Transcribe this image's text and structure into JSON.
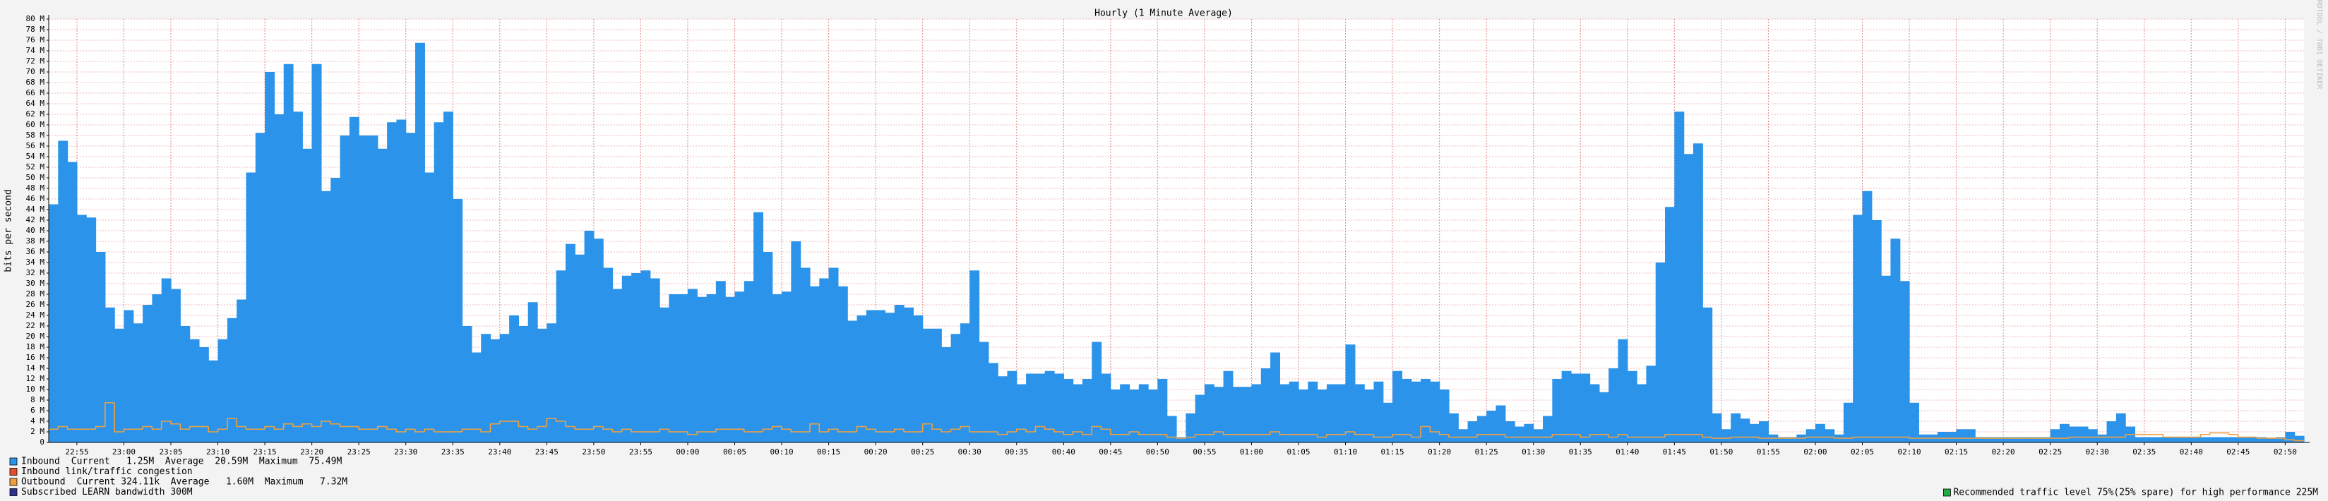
{
  "chart_data": {
    "type": "bar",
    "title": "Hourly (1 Minute Average)",
    "y_label": "bits per second",
    "side_text": "RRDTOOL / TOBI OETIKER",
    "grid": true,
    "ylim": [
      0,
      80
    ],
    "yticks": [
      0,
      {
        "value": 2,
        "label": "2 M"
      },
      {
        "value": 4,
        "label": "4 M"
      },
      {
        "value": 6,
        "label": "6 M"
      },
      {
        "value": 8,
        "label": "8 M"
      },
      {
        "value": 10,
        "label": "10 M"
      },
      {
        "value": 12,
        "label": "12 M"
      },
      {
        "value": 14,
        "label": "14 M"
      },
      {
        "value": 16,
        "label": "16 M"
      },
      {
        "value": 18,
        "label": "18 M"
      },
      {
        "value": 20,
        "label": "20 M"
      },
      {
        "value": 22,
        "label": "22 M"
      },
      {
        "value": 24,
        "label": "24 M"
      },
      {
        "value": 26,
        "label": "26 M"
      },
      {
        "value": 28,
        "label": "28 M"
      },
      {
        "value": 30,
        "label": "30 M"
      },
      {
        "value": 32,
        "label": "32 M"
      },
      {
        "value": 34,
        "label": "34 M"
      },
      {
        "value": 36,
        "label": "36 M"
      },
      {
        "value": 38,
        "label": "38 M"
      },
      {
        "value": 40,
        "label": "40 M"
      },
      {
        "value": 42,
        "label": "42 M"
      },
      {
        "value": 44,
        "label": "44 M"
      },
      {
        "value": 46,
        "label": "46 M"
      },
      {
        "value": 48,
        "label": "48 M"
      },
      {
        "value": 50,
        "label": "50 M"
      },
      {
        "value": 52,
        "label": "52 M"
      },
      {
        "value": 54,
        "label": "54 M"
      },
      {
        "value": 56,
        "label": "56 M"
      },
      {
        "value": 58,
        "label": "58 M"
      },
      {
        "value": 60,
        "label": "60 M"
      },
      {
        "value": 62,
        "label": "62 M"
      },
      {
        "value": 64,
        "label": "64 M"
      },
      {
        "value": 66,
        "label": "66 M"
      },
      {
        "value": 68,
        "label": "68 M"
      },
      {
        "value": 70,
        "label": "70 M"
      },
      {
        "value": 72,
        "label": "72 M"
      },
      {
        "value": 74,
        "label": "74 M"
      },
      {
        "value": 76,
        "label": "76 M"
      },
      {
        "value": 78,
        "label": "78 M"
      },
      {
        "value": 80,
        "label": "80 M"
      }
    ],
    "categories": [
      null,
      null,
      null,
      "22:55",
      null,
      null,
      null,
      null,
      "23:00",
      null,
      null,
      null,
      null,
      "23:05",
      null,
      null,
      null,
      null,
      "23:10",
      null,
      null,
      null,
      null,
      "23:15",
      null,
      null,
      null,
      null,
      "23:20",
      null,
      null,
      null,
      null,
      "23:25",
      null,
      null,
      null,
      null,
      "23:30",
      null,
      null,
      null,
      null,
      "23:35",
      null,
      null,
      null,
      null,
      "23:40",
      null,
      null,
      null,
      null,
      "23:45",
      null,
      null,
      null,
      null,
      "23:50",
      null,
      null,
      null,
      null,
      "23:55",
      null,
      null,
      null,
      null,
      "00:00",
      null,
      null,
      null,
      null,
      "00:05",
      null,
      null,
      null,
      null,
      "00:10",
      null,
      null,
      null,
      null,
      "00:15",
      null,
      null,
      null,
      null,
      "00:20",
      null,
      null,
      null,
      null,
      "00:25",
      null,
      null,
      null,
      null,
      "00:30",
      null,
      null,
      null,
      null,
      "00:35",
      null,
      null,
      null,
      null,
      "00:40",
      null,
      null,
      null,
      null,
      "00:45",
      null,
      null,
      null,
      null,
      "00:50",
      null,
      null,
      null,
      null,
      "00:55",
      null,
      null,
      null,
      null,
      "01:00",
      null,
      null,
      null,
      null,
      "01:05",
      null,
      null,
      null,
      null,
      "01:10",
      null,
      null,
      null,
      null,
      "01:15",
      null,
      null,
      null,
      null,
      "01:20",
      null,
      null,
      null,
      null,
      "01:25",
      null,
      null,
      null,
      null,
      "01:30",
      null,
      null,
      null,
      null,
      "01:35",
      null,
      null,
      null,
      null,
      "01:40",
      null,
      null,
      null,
      null,
      "01:45",
      null,
      null,
      null,
      null,
      "01:50",
      null,
      null,
      null,
      null,
      "01:55",
      null,
      null,
      null,
      null,
      "02:00",
      null,
      null,
      null,
      null,
      "02:05",
      null,
      null,
      null,
      null,
      "02:10",
      null,
      null,
      null,
      null,
      "02:15",
      null,
      null,
      null,
      null,
      "02:20",
      null,
      null,
      null,
      null,
      "02:25",
      null,
      null,
      null,
      null,
      "02:30",
      null,
      null,
      null,
      null,
      "02:35",
      null,
      null,
      null,
      null,
      "02:40",
      null,
      null,
      null,
      null,
      "02:45",
      null,
      null,
      null,
      null,
      "02:50",
      null
    ],
    "series": [
      {
        "name": "Inbound",
        "stats": "Current   1.25M  Average  20.59M  Maximum  75.49M",
        "color": "#2b94ea",
        "style": "area",
        "values": [
          45,
          57,
          53,
          43,
          42.5,
          36,
          25.5,
          21.5,
          25,
          22.5,
          26,
          28,
          31,
          29,
          22,
          19.5,
          18,
          15.5,
          19.5,
          23.5,
          27,
          51,
          58.5,
          70,
          62,
          71.5,
          62.5,
          55.5,
          71.5,
          47.5,
          50,
          58,
          61.5,
          58,
          58,
          55.5,
          60.5,
          61,
          58.5,
          75.5,
          51,
          60.5,
          62.5,
          46,
          22,
          17,
          20.5,
          19.5,
          20.5,
          24,
          22,
          26.5,
          21.5,
          22.5,
          32.5,
          37.5,
          35.5,
          40,
          38.5,
          33,
          29,
          31.5,
          32,
          32.5,
          31,
          25.5,
          28,
          28,
          29,
          27.5,
          28,
          30.5,
          27.5,
          28.5,
          30.5,
          43.5,
          36,
          28,
          28.5,
          38,
          33,
          29.5,
          31,
          33,
          29.5,
          23,
          24,
          25,
          25,
          24.5,
          26,
          25.5,
          24,
          21.5,
          21.5,
          18,
          20.5,
          22.5,
          32.5,
          19,
          15,
          12.5,
          13.5,
          11,
          13,
          13,
          13.5,
          13,
          12,
          11,
          12,
          19,
          13,
          10,
          11,
          10,
          11,
          10,
          12,
          5,
          1,
          5.5,
          9,
          11,
          10.5,
          13.5,
          10.5,
          10.5,
          11,
          14,
          17,
          11,
          11.5,
          10,
          11.5,
          10,
          11,
          11,
          18.5,
          11,
          10,
          11.5,
          7.5,
          13.5,
          12,
          11.5,
          12,
          11.5,
          10,
          5.5,
          2.5,
          4,
          5,
          6,
          7,
          4,
          3,
          3.5,
          2.5,
          5,
          12,
          13.5,
          13,
          13,
          11,
          9.5,
          14,
          19.5,
          13.5,
          11,
          14.5,
          34,
          44.5,
          62.5,
          54.5,
          56.5,
          25.5,
          5.5,
          2.5,
          5.5,
          4.5,
          3.5,
          4,
          1.5,
          1,
          1,
          1.5,
          2.5,
          3.5,
          2.5,
          1.5,
          7.5,
          43,
          47.5,
          42,
          31.5,
          38.5,
          30.5,
          7.5,
          1.5,
          1.5,
          2,
          2,
          2.5,
          2.5,
          1,
          1,
          1,
          1,
          1,
          1,
          1,
          1,
          2.5,
          3.5,
          3,
          3,
          2.5,
          1.5,
          4,
          5.5,
          3,
          1,
          1,
          1,
          1,
          1,
          1,
          1,
          1,
          1,
          1,
          1,
          1,
          1,
          1,
          0.8,
          1,
          2,
          1.25
        ]
      },
      {
        "name": "Outbound",
        "stats": "Current 324.11k  Average   1.60M  Maximum   7.32M",
        "color": "#f0a040",
        "style": "step",
        "values": [
          2.5,
          3,
          2.5,
          2.5,
          2.5,
          3,
          7.5,
          2,
          2.5,
          2.5,
          3,
          2.5,
          4,
          3.5,
          2.5,
          3,
          3,
          2,
          2.5,
          4.5,
          3,
          2.5,
          2.5,
          3,
          2.5,
          3.5,
          3,
          3.5,
          3,
          4,
          3.5,
          3,
          3,
          2.5,
          2.5,
          3,
          2.5,
          2,
          2.5,
          2,
          2.5,
          2,
          2,
          2,
          2.5,
          2.5,
          2,
          3.5,
          4,
          4,
          3,
          2.5,
          3,
          4.5,
          4,
          3,
          2.5,
          2.5,
          3,
          2.5,
          2,
          2.5,
          2,
          2,
          2,
          2.5,
          2,
          2,
          1.5,
          2,
          2,
          2.5,
          2.5,
          2.5,
          2,
          2,
          2.5,
          3,
          2.5,
          2,
          2,
          3.5,
          2,
          2.5,
          2,
          2,
          3,
          2.5,
          2,
          2,
          2.5,
          2,
          2,
          3.5,
          2.5,
          2,
          2.5,
          3,
          2,
          2,
          2,
          1.5,
          2,
          2.5,
          2,
          3,
          2.5,
          2,
          1.5,
          2,
          1.5,
          3,
          2.5,
          1.5,
          1.5,
          2,
          1.5,
          1.5,
          1.5,
          1,
          0.8,
          1,
          1.5,
          1.5,
          2,
          1.5,
          1.5,
          1.5,
          1.5,
          1.5,
          2,
          1.5,
          1.5,
          1.5,
          1.5,
          1,
          1.5,
          1.5,
          2,
          1.5,
          1.5,
          1,
          1,
          1.5,
          1.5,
          1,
          3,
          2,
          1.5,
          1,
          1,
          1,
          1.5,
          1.5,
          1.5,
          1,
          1,
          1,
          1,
          1,
          1.5,
          1.5,
          1.5,
          1,
          1.5,
          1.5,
          1,
          1.5,
          1,
          1,
          1,
          1,
          1.5,
          1.5,
          1.5,
          1.5,
          1,
          0.8,
          0.8,
          1,
          1,
          1,
          0.8,
          0.8,
          0.8,
          0.8,
          0.8,
          1,
          1,
          1,
          0.8,
          0.8,
          1,
          1,
          1,
          1,
          1,
          1,
          0.8,
          0.8,
          0.8,
          0.8,
          0.8,
          0.8,
          0.8,
          0.8,
          0.8,
          0.8,
          0.8,
          0.8,
          0.8,
          0.8,
          0.8,
          0.8,
          0.8,
          1,
          1,
          1,
          1,
          1,
          1,
          1.5,
          1.5,
          1.5,
          1.5,
          1,
          1,
          1,
          1,
          1.5,
          1.8,
          1.8,
          1.5,
          1,
          1,
          0.8,
          0.8,
          0.8,
          0.5,
          0.32
        ]
      }
    ],
    "legend_extra": [
      {
        "text": "Inbound link/traffic congestion",
        "color": "#e05030"
      },
      {
        "text": "Subscribed LEARN bandwidth 300M",
        "color": "#303090"
      }
    ],
    "note": {
      "text": "Recommended traffic level 75%(25% spare) for high performance 225M",
      "color": "#22aa44"
    }
  }
}
